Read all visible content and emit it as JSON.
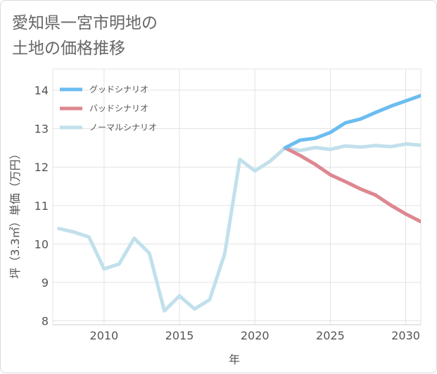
{
  "chart_data": {
    "type": "line",
    "title": "愛知県一宮市明地の\n土地の価格推移",
    "xlabel": "年",
    "ylabel": "坪（3.3㎡）単価（万円）",
    "xlim": [
      2006.6,
      2031
    ],
    "ylim": [
      7.9,
      14.55
    ],
    "xticks": [
      2010,
      2015,
      2020,
      2025,
      2030
    ],
    "yticks": [
      8,
      9,
      10,
      11,
      12,
      13,
      14
    ],
    "grid": true,
    "legend_position": "top-left",
    "series": [
      {
        "name": "グッドシナリオ",
        "color": "#6bbdf0",
        "x": [
          2022,
          2023,
          2024,
          2025,
          2026,
          2027,
          2028,
          2029,
          2030,
          2031
        ],
        "values": [
          12.5,
          12.7,
          12.75,
          12.9,
          13.15,
          13.25,
          13.42,
          13.58,
          13.72,
          13.86
        ]
      },
      {
        "name": "バッドシナリオ",
        "color": "#de8790",
        "x": [
          2022,
          2023,
          2024,
          2025,
          2026,
          2027,
          2028,
          2029,
          2030,
          2031
        ],
        "values": [
          12.5,
          12.3,
          12.07,
          11.8,
          11.62,
          11.43,
          11.27,
          11.01,
          10.78,
          10.58
        ]
      },
      {
        "name": "ノーマルシナリオ",
        "color": "#c1e0ec",
        "x": [
          2007,
          2008,
          2009,
          2010,
          2011,
          2012,
          2013,
          2014,
          2015,
          2016,
          2017,
          2018,
          2019,
          2020,
          2021,
          2022,
          2023,
          2024,
          2025,
          2026,
          2027,
          2028,
          2029,
          2030,
          2031
        ],
        "values": [
          10.4,
          10.31,
          10.18,
          9.35,
          9.48,
          10.15,
          9.76,
          8.26,
          8.65,
          8.31,
          8.55,
          9.75,
          12.2,
          11.9,
          12.15,
          12.5,
          12.43,
          12.51,
          12.46,
          12.55,
          12.52,
          12.56,
          12.53,
          12.6,
          12.57
        ]
      }
    ]
  }
}
